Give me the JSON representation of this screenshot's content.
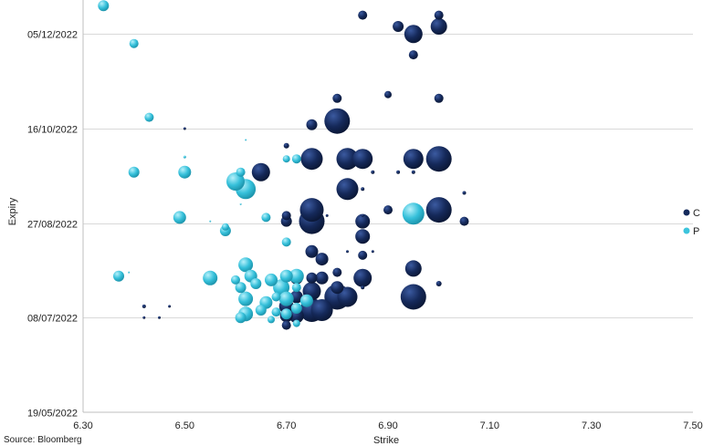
{
  "chart_data": {
    "type": "scatter",
    "title": "",
    "xlabel": "Strike",
    "ylabel": "Expiry",
    "xlim": [
      6.3,
      7.5
    ],
    "x_ticks": [
      "6.30",
      "6.50",
      "6.70",
      "6.90",
      "7.10",
      "7.30",
      "7.50"
    ],
    "y_ticks": [
      "19/05/2022",
      "08/07/2022",
      "27/08/2022",
      "16/10/2022",
      "05/12/2022"
    ],
    "ylim": [
      "2022-05-19",
      "2022-12-23"
    ],
    "grid": "horizontal",
    "legend_position": "right",
    "source": "Source: Bloomberg",
    "colors": {
      "C": "#152a5c",
      "P": "#3cc4dc"
    },
    "series": [
      {
        "name": "C",
        "points": [
          {
            "x": 6.85,
            "y": "2022-12-15",
            "s": 5
          },
          {
            "x": 6.92,
            "y": "2022-12-09",
            "s": 6
          },
          {
            "x": 6.95,
            "y": "2022-12-05",
            "s": 10
          },
          {
            "x": 7.0,
            "y": "2022-12-15",
            "s": 5
          },
          {
            "x": 7.0,
            "y": "2022-12-09",
            "s": 9
          },
          {
            "x": 6.95,
            "y": "2022-11-24",
            "s": 5
          },
          {
            "x": 6.9,
            "y": "2022-11-03",
            "s": 4
          },
          {
            "x": 7.0,
            "y": "2022-11-01",
            "s": 5
          },
          {
            "x": 6.8,
            "y": "2022-11-01",
            "s": 5
          },
          {
            "x": 6.8,
            "y": "2022-10-20",
            "s": 14
          },
          {
            "x": 6.75,
            "y": "2022-10-18",
            "s": 6
          },
          {
            "x": 6.5,
            "y": "2022-10-16",
            "s": 1.5
          },
          {
            "x": 6.7,
            "y": "2022-10-07",
            "s": 3
          },
          {
            "x": 6.75,
            "y": "2022-09-30",
            "s": 12
          },
          {
            "x": 6.82,
            "y": "2022-09-30",
            "s": 12
          },
          {
            "x": 6.85,
            "y": "2022-09-30",
            "s": 11
          },
          {
            "x": 6.95,
            "y": "2022-09-30",
            "s": 11
          },
          {
            "x": 7.0,
            "y": "2022-09-30",
            "s": 14
          },
          {
            "x": 6.65,
            "y": "2022-09-23",
            "s": 10
          },
          {
            "x": 6.82,
            "y": "2022-09-14",
            "s": 12
          },
          {
            "x": 6.75,
            "y": "2022-09-03",
            "s": 13
          },
          {
            "x": 6.75,
            "y": "2022-08-28",
            "s": 14
          },
          {
            "x": 7.0,
            "y": "2022-09-03",
            "s": 14
          },
          {
            "x": 6.9,
            "y": "2022-09-03",
            "s": 5
          },
          {
            "x": 6.85,
            "y": "2022-08-28",
            "s": 8
          },
          {
            "x": 6.85,
            "y": "2022-08-20",
            "s": 8
          },
          {
            "x": 7.05,
            "y": "2022-08-28",
            "s": 5
          },
          {
            "x": 7.05,
            "y": "2022-09-12",
            "s": 2
          },
          {
            "x": 6.7,
            "y": "2022-08-28",
            "s": 6
          },
          {
            "x": 6.7,
            "y": "2022-08-31",
            "s": 5
          },
          {
            "x": 6.75,
            "y": "2022-08-12",
            "s": 7
          },
          {
            "x": 6.77,
            "y": "2022-08-08",
            "s": 7
          },
          {
            "x": 6.95,
            "y": "2022-08-03",
            "s": 9
          },
          {
            "x": 6.85,
            "y": "2022-08-10",
            "s": 5
          },
          {
            "x": 6.8,
            "y": "2022-08-01",
            "s": 5
          },
          {
            "x": 6.77,
            "y": "2022-07-29",
            "s": 7
          },
          {
            "x": 6.85,
            "y": "2022-07-29",
            "s": 10
          },
          {
            "x": 6.75,
            "y": "2022-07-29",
            "s": 6
          },
          {
            "x": 6.72,
            "y": "2022-07-29",
            "s": 7
          },
          {
            "x": 6.8,
            "y": "2022-07-24",
            "s": 7
          },
          {
            "x": 6.75,
            "y": "2022-07-22",
            "s": 10
          },
          {
            "x": 6.8,
            "y": "2022-07-19",
            "s": 14
          },
          {
            "x": 6.82,
            "y": "2022-07-19",
            "s": 11
          },
          {
            "x": 6.72,
            "y": "2022-07-19",
            "s": 7
          },
          {
            "x": 6.7,
            "y": "2022-07-14",
            "s": 8
          },
          {
            "x": 6.75,
            "y": "2022-07-12",
            "s": 13
          },
          {
            "x": 6.77,
            "y": "2022-07-12",
            "s": 12
          },
          {
            "x": 6.72,
            "y": "2022-07-09",
            "s": 8
          },
          {
            "x": 6.7,
            "y": "2022-07-09",
            "s": 7
          },
          {
            "x": 6.7,
            "y": "2022-07-04",
            "s": 5
          },
          {
            "x": 6.95,
            "y": "2022-07-19",
            "s": 14
          },
          {
            "x": 6.85,
            "y": "2022-07-24",
            "s": 2
          },
          {
            "x": 7.0,
            "y": "2022-07-26",
            "s": 3
          },
          {
            "x": 6.42,
            "y": "2022-07-14",
            "s": 2
          },
          {
            "x": 6.42,
            "y": "2022-07-08",
            "s": 1.5
          },
          {
            "x": 6.47,
            "y": "2022-07-14",
            "s": 1.5
          },
          {
            "x": 6.45,
            "y": "2022-07-08",
            "s": 1.5
          },
          {
            "x": 6.85,
            "y": "2022-09-14",
            "s": 2
          },
          {
            "x": 6.87,
            "y": "2022-09-23",
            "s": 2
          },
          {
            "x": 6.92,
            "y": "2022-09-23",
            "s": 2
          },
          {
            "x": 6.95,
            "y": "2022-09-23",
            "s": 2
          },
          {
            "x": 6.82,
            "y": "2022-08-12",
            "s": 1.5
          },
          {
            "x": 6.87,
            "y": "2022-08-12",
            "s": 1.5
          },
          {
            "x": 6.85,
            "y": "2022-08-31",
            "s": 1.5
          },
          {
            "x": 6.78,
            "y": "2022-08-31",
            "s": 1.5
          }
        ]
      },
      {
        "name": "P",
        "points": [
          {
            "x": 6.34,
            "y": "2022-12-20",
            "s": 6
          },
          {
            "x": 6.4,
            "y": "2022-11-30",
            "s": 5
          },
          {
            "x": 6.43,
            "y": "2022-10-22",
            "s": 5
          },
          {
            "x": 6.4,
            "y": "2022-09-23",
            "s": 6
          },
          {
            "x": 6.5,
            "y": "2022-09-23",
            "s": 7
          },
          {
            "x": 6.61,
            "y": "2022-09-23",
            "s": 5
          },
          {
            "x": 6.6,
            "y": "2022-09-18",
            "s": 10
          },
          {
            "x": 6.62,
            "y": "2022-09-14",
            "s": 11
          },
          {
            "x": 6.49,
            "y": "2022-08-30",
            "s": 7
          },
          {
            "x": 6.66,
            "y": "2022-08-30",
            "s": 5
          },
          {
            "x": 6.55,
            "y": "2022-08-28",
            "s": 1
          },
          {
            "x": 6.58,
            "y": "2022-08-23",
            "s": 6
          },
          {
            "x": 6.58,
            "y": "2022-08-25",
            "s": 4
          },
          {
            "x": 6.7,
            "y": "2022-08-17",
            "s": 5
          },
          {
            "x": 6.95,
            "y": "2022-09-01",
            "s": 12
          },
          {
            "x": 6.7,
            "y": "2022-09-30",
            "s": 4
          },
          {
            "x": 6.72,
            "y": "2022-09-30",
            "s": 5
          },
          {
            "x": 6.62,
            "y": "2022-08-05",
            "s": 8
          },
          {
            "x": 6.55,
            "y": "2022-07-29",
            "s": 8
          },
          {
            "x": 6.37,
            "y": "2022-07-30",
            "s": 6
          },
          {
            "x": 6.63,
            "y": "2022-07-30",
            "s": 7
          },
          {
            "x": 6.6,
            "y": "2022-07-28",
            "s": 5
          },
          {
            "x": 6.67,
            "y": "2022-07-28",
            "s": 7
          },
          {
            "x": 6.7,
            "y": "2022-07-30",
            "s": 7
          },
          {
            "x": 6.72,
            "y": "2022-07-30",
            "s": 8
          },
          {
            "x": 6.64,
            "y": "2022-07-26",
            "s": 6
          },
          {
            "x": 6.69,
            "y": "2022-07-24",
            "s": 9
          },
          {
            "x": 6.72,
            "y": "2022-07-24",
            "s": 5
          },
          {
            "x": 6.61,
            "y": "2022-07-24",
            "s": 6
          },
          {
            "x": 6.62,
            "y": "2022-07-18",
            "s": 8
          },
          {
            "x": 6.66,
            "y": "2022-07-16",
            "s": 7
          },
          {
            "x": 6.7,
            "y": "2022-07-18",
            "s": 8
          },
          {
            "x": 6.74,
            "y": "2022-07-17",
            "s": 7
          },
          {
            "x": 6.68,
            "y": "2022-07-19",
            "s": 5
          },
          {
            "x": 6.65,
            "y": "2022-07-12",
            "s": 6
          },
          {
            "x": 6.62,
            "y": "2022-07-10",
            "s": 8
          },
          {
            "x": 6.61,
            "y": "2022-07-08",
            "s": 6
          },
          {
            "x": 6.68,
            "y": "2022-07-11",
            "s": 5
          },
          {
            "x": 6.67,
            "y": "2022-07-07",
            "s": 4
          },
          {
            "x": 6.7,
            "y": "2022-07-10",
            "s": 6
          },
          {
            "x": 6.72,
            "y": "2022-07-13",
            "s": 6
          },
          {
            "x": 6.72,
            "y": "2022-07-05",
            "s": 4
          },
          {
            "x": 6.61,
            "y": "2022-09-06",
            "s": 1
          },
          {
            "x": 6.62,
            "y": "2022-10-10",
            "s": 1
          },
          {
            "x": 6.5,
            "y": "2022-10-01",
            "s": 1.5
          },
          {
            "x": 6.39,
            "y": "2022-08-01",
            "s": 1
          }
        ]
      }
    ]
  }
}
